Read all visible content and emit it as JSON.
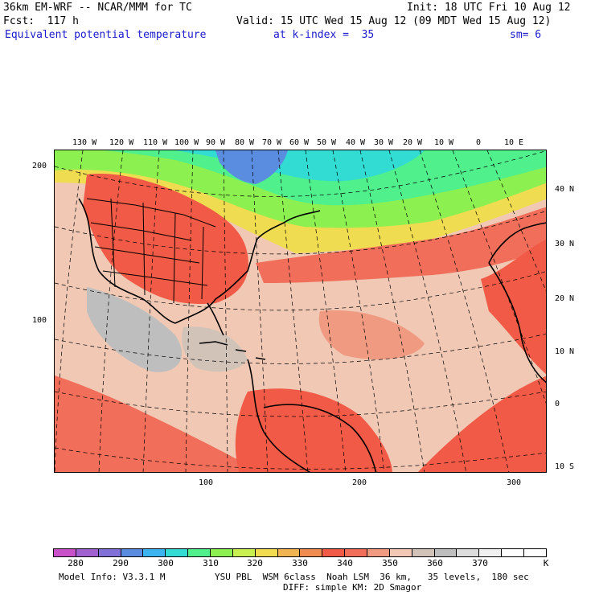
{
  "header": {
    "model_line": "36km EM-WRF -- NCAR/MMM for TC",
    "init": "Init: 18 UTC Fri 10 Aug 12",
    "fcst": "Fcst:  117 h",
    "valid": "Valid: 15 UTC Wed 15 Aug 12 (09 MDT Wed 15 Aug 12)",
    "field": "Equivalent potential temperature",
    "level": "at k-index =  35",
    "smoothing": "sm= 6"
  },
  "map": {
    "lon_labels": [
      "130 W",
      "120 W",
      "110 W",
      "100 W",
      "90 W",
      "80 W",
      "70 W",
      "60 W",
      "50 W",
      "40 W",
      "30 W",
      "20 W",
      "10 W",
      "0",
      "10 E"
    ],
    "lat_labels": [
      "40 N",
      "30 N",
      "20 N",
      "10 N",
      "0",
      "10 S"
    ],
    "grid_y_labels": [
      "200",
      "100"
    ],
    "grid_x_labels": [
      "100",
      "200",
      "300"
    ]
  },
  "colorbar": {
    "colors": [
      "#c850c8",
      "#a060d0",
      "#8070d8",
      "#5a8ce0",
      "#3cb4f0",
      "#32dcd2",
      "#50f08c",
      "#8cf050",
      "#c8f050",
      "#f0dc50",
      "#f0b450",
      "#f08c50",
      "#f05a46",
      "#f06e5a",
      "#f09a82",
      "#f0c8b4",
      "#d2c3b9",
      "#bebebe",
      "#dcdcdc",
      "#f0f0f0",
      "#ffffff",
      "#ffffff"
    ],
    "labels": [
      "280",
      "290",
      "300",
      "310",
      "320",
      "330",
      "340",
      "350",
      "360",
      "370"
    ],
    "unit": "K"
  },
  "footer": {
    "model_info": "Model Info: V3.3.1 M",
    "physics": "YSU PBL  WSM 6class  Noah LSM  36 km,   35 levels,  180 sec",
    "diffusion": "DIFF: simple KM: 2D Smagor"
  }
}
